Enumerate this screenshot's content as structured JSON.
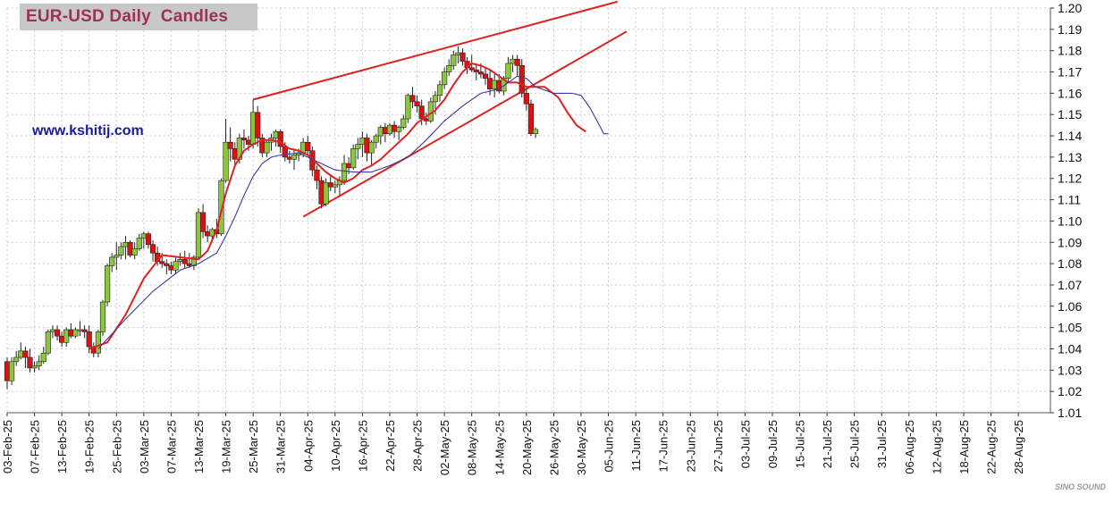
{
  "chart_data": {
    "type": "candlestick",
    "title": "EUR-USD Daily  Candles",
    "annotation": "www.kshitij.com",
    "ylim": [
      1.01,
      1.2
    ],
    "y_ticks": [
      "1.20",
      "1.19",
      "1.18",
      "1.17",
      "1.16",
      "1.15",
      "1.14",
      "1.13",
      "1.12",
      "1.11",
      "1.10",
      "1.09",
      "1.08",
      "1.07",
      "1.06",
      "1.05",
      "1.04",
      "1.03",
      "1.02",
      "1.01"
    ],
    "x_ticks": [
      "03-Feb-25",
      "07-Feb-25",
      "13-Feb-25",
      "19-Feb-25",
      "25-Feb-25",
      "03-Mar-25",
      "07-Mar-25",
      "13-Mar-25",
      "19-Mar-25",
      "25-Mar-25",
      "31-Mar-25",
      "04-Apr-25",
      "10-Apr-25",
      "16-Apr-25",
      "22-Apr-25",
      "28-Apr-25",
      "02-May-25",
      "08-May-25",
      "14-May-25",
      "20-May-25",
      "26-May-25",
      "30-May-25",
      "05-Jun-25",
      "11-Jun-25",
      "17-Jun-25",
      "23-Jun-25",
      "27-Jun-25",
      "03-Jul-25",
      "09-Jul-25",
      "15-Jul-25",
      "21-Jul-25",
      "25-Jul-25",
      "31-Jul-25",
      "06-Aug-25",
      "12-Aug-25",
      "18-Aug-25",
      "22-Aug-25",
      "28-Aug-25"
    ],
    "candle_colors": {
      "up": "#8cc63f",
      "down": "#dd1111"
    },
    "ohlc": [
      [
        1.034,
        1.036,
        1.021,
        1.025
      ],
      [
        1.025,
        1.036,
        1.023,
        1.034
      ],
      [
        1.034,
        1.039,
        1.032,
        1.036
      ],
      [
        1.036,
        1.043,
        1.035,
        1.039
      ],
      [
        1.039,
        1.041,
        1.031,
        1.036
      ],
      [
        1.036,
        1.04,
        1.029,
        1.031
      ],
      [
        1.031,
        1.034,
        1.029,
        1.032
      ],
      [
        1.032,
        1.037,
        1.03,
        1.034
      ],
      [
        1.034,
        1.041,
        1.033,
        1.038
      ],
      [
        1.038,
        1.049,
        1.037,
        1.048
      ],
      [
        1.048,
        1.051,
        1.045,
        1.049
      ],
      [
        1.049,
        1.051,
        1.044,
        1.046
      ],
      [
        1.046,
        1.048,
        1.041,
        1.043
      ],
      [
        1.043,
        1.05,
        1.041,
        1.049
      ],
      [
        1.049,
        1.052,
        1.045,
        1.046
      ],
      [
        1.046,
        1.05,
        1.045,
        1.049
      ],
      [
        1.049,
        1.053,
        1.046,
        1.049
      ],
      [
        1.049,
        1.051,
        1.045,
        1.048
      ],
      [
        1.048,
        1.051,
        1.038,
        1.041
      ],
      [
        1.041,
        1.043,
        1.036,
        1.038
      ],
      [
        1.038,
        1.049,
        1.036,
        1.048
      ],
      [
        1.048,
        1.063,
        1.046,
        1.062
      ],
      [
        1.062,
        1.08,
        1.06,
        1.079
      ],
      [
        1.079,
        1.085,
        1.076,
        1.083
      ],
      [
        1.083,
        1.09,
        1.077,
        1.084
      ],
      [
        1.084,
        1.09,
        1.082,
        1.088
      ],
      [
        1.088,
        1.093,
        1.082,
        1.09
      ],
      [
        1.09,
        1.091,
        1.083,
        1.084
      ],
      [
        1.084,
        1.09,
        1.082,
        1.087
      ],
      [
        1.087,
        1.094,
        1.086,
        1.092
      ],
      [
        1.092,
        1.095,
        1.087,
        1.094
      ],
      [
        1.094,
        1.095,
        1.087,
        1.089
      ],
      [
        1.089,
        1.091,
        1.081,
        1.085
      ],
      [
        1.085,
        1.088,
        1.079,
        1.081
      ],
      [
        1.081,
        1.085,
        1.078,
        1.08
      ],
      [
        1.08,
        1.082,
        1.075,
        1.079
      ],
      [
        1.079,
        1.081,
        1.075,
        1.077
      ],
      [
        1.077,
        1.083,
        1.075,
        1.081
      ],
      [
        1.081,
        1.085,
        1.079,
        1.082
      ],
      [
        1.082,
        1.086,
        1.078,
        1.08
      ],
      [
        1.08,
        1.085,
        1.078,
        1.079
      ],
      [
        1.079,
        1.084,
        1.077,
        1.083
      ],
      [
        1.083,
        1.106,
        1.082,
        1.104
      ],
      [
        1.104,
        1.108,
        1.092,
        1.095
      ],
      [
        1.095,
        1.098,
        1.09,
        1.093
      ],
      [
        1.093,
        1.097,
        1.09,
        1.096
      ],
      [
        1.096,
        1.101,
        1.092,
        1.094
      ],
      [
        1.094,
        1.12,
        1.093,
        1.119
      ],
      [
        1.119,
        1.148,
        1.118,
        1.137
      ],
      [
        1.137,
        1.144,
        1.128,
        1.134
      ],
      [
        1.134,
        1.137,
        1.126,
        1.129
      ],
      [
        1.129,
        1.141,
        1.127,
        1.139
      ],
      [
        1.139,
        1.143,
        1.134,
        1.138
      ],
      [
        1.138,
        1.14,
        1.133,
        1.136
      ],
      [
        1.136,
        1.157,
        1.134,
        1.151
      ],
      [
        1.151,
        1.154,
        1.135,
        1.139
      ],
      [
        1.139,
        1.141,
        1.13,
        1.132
      ],
      [
        1.132,
        1.138,
        1.13,
        1.137
      ],
      [
        1.137,
        1.141,
        1.133,
        1.139
      ],
      [
        1.139,
        1.143,
        1.135,
        1.142
      ],
      [
        1.142,
        1.143,
        1.132,
        1.135
      ],
      [
        1.135,
        1.137,
        1.128,
        1.13
      ],
      [
        1.13,
        1.133,
        1.127,
        1.129
      ],
      [
        1.129,
        1.134,
        1.124,
        1.131
      ],
      [
        1.131,
        1.134,
        1.128,
        1.132
      ],
      [
        1.132,
        1.139,
        1.13,
        1.137
      ],
      [
        1.137,
        1.14,
        1.131,
        1.133
      ],
      [
        1.133,
        1.135,
        1.121,
        1.124
      ],
      [
        1.124,
        1.126,
        1.115,
        1.119
      ],
      [
        1.119,
        1.121,
        1.106,
        1.108
      ],
      [
        1.108,
        1.12,
        1.107,
        1.118
      ],
      [
        1.118,
        1.121,
        1.114,
        1.116
      ],
      [
        1.116,
        1.119,
        1.113,
        1.117
      ],
      [
        1.117,
        1.121,
        1.112,
        1.119
      ],
      [
        1.119,
        1.131,
        1.117,
        1.127
      ],
      [
        1.127,
        1.13,
        1.122,
        1.125
      ],
      [
        1.125,
        1.136,
        1.124,
        1.134
      ],
      [
        1.134,
        1.139,
        1.129,
        1.136
      ],
      [
        1.136,
        1.142,
        1.13,
        1.139
      ],
      [
        1.139,
        1.141,
        1.128,
        1.132
      ],
      [
        1.132,
        1.138,
        1.126,
        1.137
      ],
      [
        1.137,
        1.141,
        1.134,
        1.14
      ],
      [
        1.14,
        1.145,
        1.136,
        1.144
      ],
      [
        1.144,
        1.146,
        1.137,
        1.141
      ],
      [
        1.141,
        1.146,
        1.14,
        1.145
      ],
      [
        1.145,
        1.147,
        1.139,
        1.142
      ],
      [
        1.142,
        1.145,
        1.138,
        1.144
      ],
      [
        1.144,
        1.15,
        1.143,
        1.148
      ],
      [
        1.148,
        1.16,
        1.146,
        1.159
      ],
      [
        1.159,
        1.163,
        1.153,
        1.156
      ],
      [
        1.156,
        1.159,
        1.151,
        1.154
      ],
      [
        1.154,
        1.157,
        1.145,
        1.148
      ],
      [
        1.148,
        1.151,
        1.145,
        1.147
      ],
      [
        1.147,
        1.158,
        1.146,
        1.156
      ],
      [
        1.156,
        1.161,
        1.15,
        1.159
      ],
      [
        1.159,
        1.166,
        1.156,
        1.164
      ],
      [
        1.164,
        1.172,
        1.162,
        1.17
      ],
      [
        1.17,
        1.176,
        1.168,
        1.173
      ],
      [
        1.173,
        1.18,
        1.171,
        1.178
      ],
      [
        1.178,
        1.182,
        1.174,
        1.179
      ],
      [
        1.179,
        1.181,
        1.173,
        1.175
      ],
      [
        1.175,
        1.177,
        1.169,
        1.172
      ],
      [
        1.172,
        1.178,
        1.17,
        1.171
      ],
      [
        1.171,
        1.174,
        1.166,
        1.17
      ],
      [
        1.17,
        1.174,
        1.167,
        1.169
      ],
      [
        1.169,
        1.172,
        1.164,
        1.167
      ],
      [
        1.167,
        1.171,
        1.159,
        1.162
      ],
      [
        1.162,
        1.169,
        1.158,
        1.166
      ],
      [
        1.166,
        1.169,
        1.16,
        1.161
      ],
      [
        1.161,
        1.168,
        1.159,
        1.167
      ],
      [
        1.167,
        1.177,
        1.165,
        1.174
      ],
      [
        1.174,
        1.178,
        1.17,
        1.176
      ],
      [
        1.176,
        1.178,
        1.168,
        1.173
      ],
      [
        1.173,
        1.176,
        1.158,
        1.16
      ],
      [
        1.16,
        1.162,
        1.152,
        1.155
      ],
      [
        1.155,
        1.157,
        1.14,
        1.141
      ],
      [
        1.141,
        1.144,
        1.139,
        1.143
      ]
    ],
    "series": [
      {
        "color": "#dd2222",
        "values": [
          [
            18,
            1.04
          ],
          [
            22,
            1.043
          ],
          [
            26,
            1.056
          ],
          [
            30,
            1.073
          ],
          [
            34,
            1.084
          ],
          [
            38,
            1.083
          ],
          [
            42,
            1.082
          ],
          [
            44,
            1.086
          ],
          [
            46,
            1.096
          ],
          [
            48,
            1.113
          ],
          [
            50,
            1.126
          ],
          [
            52,
            1.133
          ],
          [
            54,
            1.136
          ],
          [
            56,
            1.138
          ],
          [
            58,
            1.138
          ],
          [
            60,
            1.137
          ],
          [
            62,
            1.134
          ],
          [
            64,
            1.133
          ],
          [
            66,
            1.131
          ],
          [
            68,
            1.127
          ],
          [
            70,
            1.123
          ],
          [
            72,
            1.12
          ],
          [
            74,
            1.118
          ],
          [
            76,
            1.12
          ],
          [
            78,
            1.124
          ],
          [
            80,
            1.126
          ],
          [
            82,
            1.129
          ],
          [
            84,
            1.133
          ],
          [
            86,
            1.137
          ],
          [
            88,
            1.141
          ],
          [
            90,
            1.146
          ],
          [
            92,
            1.149
          ],
          [
            94,
            1.152
          ],
          [
            96,
            1.157
          ],
          [
            98,
            1.164
          ],
          [
            100,
            1.17
          ],
          [
            102,
            1.174
          ],
          [
            104,
            1.173
          ],
          [
            106,
            1.171
          ],
          [
            108,
            1.168
          ],
          [
            110,
            1.165
          ],
          [
            112,
            1.165
          ],
          [
            114,
            1.163
          ],
          [
            116,
            1.163
          ],
          [
            118,
            1.163
          ],
          [
            121,
            1.158
          ],
          [
            123,
            1.151
          ],
          [
            125,
            1.145
          ],
          [
            127,
            1.142
          ]
        ]
      },
      {
        "color": "#3a3aa0",
        "values": [
          [
            20,
            1.04
          ],
          [
            26,
            1.054
          ],
          [
            32,
            1.067
          ],
          [
            38,
            1.077
          ],
          [
            42,
            1.08
          ],
          [
            46,
            1.085
          ],
          [
            48,
            1.093
          ],
          [
            50,
            1.102
          ],
          [
            52,
            1.112
          ],
          [
            54,
            1.121
          ],
          [
            56,
            1.127
          ],
          [
            58,
            1.13
          ],
          [
            60,
            1.131
          ],
          [
            64,
            1.132
          ],
          [
            68,
            1.128
          ],
          [
            72,
            1.124
          ],
          [
            76,
            1.123
          ],
          [
            80,
            1.123
          ],
          [
            84,
            1.126
          ],
          [
            88,
            1.13
          ],
          [
            92,
            1.138
          ],
          [
            96,
            1.147
          ],
          [
            100,
            1.154
          ],
          [
            104,
            1.16
          ],
          [
            108,
            1.162
          ],
          [
            110,
            1.165
          ],
          [
            112,
            1.168
          ],
          [
            114,
            1.167
          ],
          [
            116,
            1.163
          ],
          [
            120,
            1.16
          ],
          [
            124,
            1.16
          ],
          [
            126,
            1.159
          ],
          [
            128,
            1.153
          ],
          [
            130,
            1.145
          ],
          [
            131,
            1.141
          ],
          [
            132,
            1.141
          ]
        ]
      }
    ],
    "trendlines": [
      {
        "color": "#dd2222",
        "points": [
          [
            54,
            1.157
          ],
          [
            134,
            1.203
          ]
        ]
      },
      {
        "color": "#dd2222",
        "points": [
          [
            65,
            1.102
          ],
          [
            136,
            1.189
          ]
        ]
      }
    ]
  }
}
